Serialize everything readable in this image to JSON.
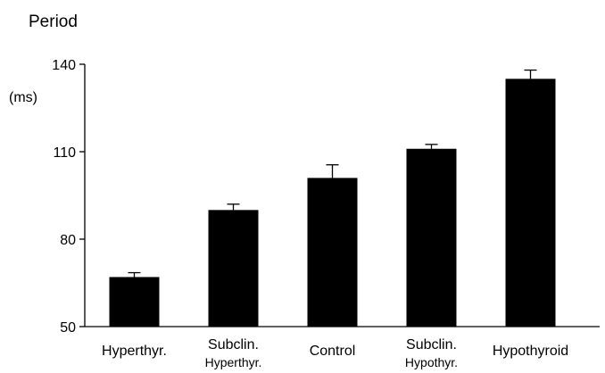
{
  "chart_data": {
    "type": "bar",
    "title": "Period",
    "ylabel": "(ms)",
    "xlabel": "",
    "categories": [
      {
        "line1": "Hyperthyr.",
        "line2": ""
      },
      {
        "line1": "Subclin.",
        "line2": "Hyperthyr."
      },
      {
        "line1": "Control",
        "line2": ""
      },
      {
        "line1": "Subclin.",
        "line2": "Hypothyr."
      },
      {
        "line1": "Hypothyroid",
        "line2": ""
      }
    ],
    "values": [
      67,
      90,
      101,
      111,
      135
    ],
    "errors": [
      1.5,
      2,
      4.5,
      1.5,
      3
    ],
    "ylim": [
      50,
      140
    ],
    "yticks": [
      50,
      80,
      110,
      140
    ],
    "bar_color": "#000000",
    "axis_color": "#000000",
    "grid": false,
    "legend": "none"
  }
}
